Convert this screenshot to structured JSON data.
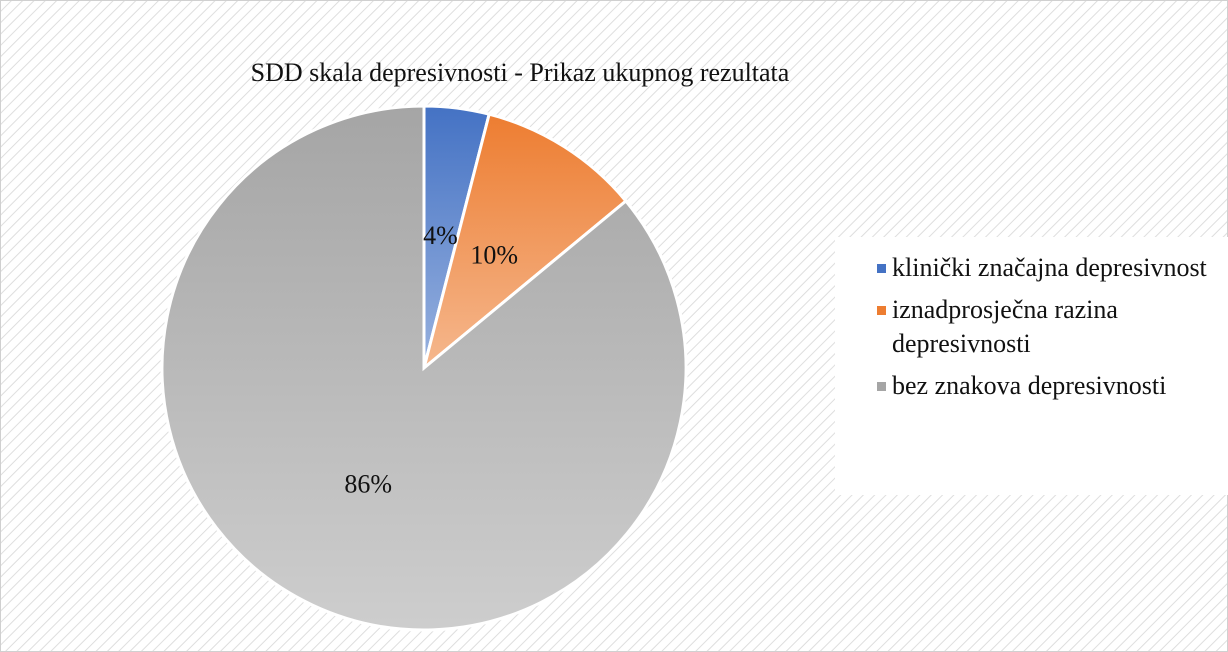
{
  "chart_data": {
    "type": "pie",
    "title": "SDD skala depresivnosti - Prikaz ukupnog rezultata",
    "categories": [
      "klinički značajna depresivnost",
      "iznadprosječna razina depresivnosti",
      "bez znakova depresivnosti"
    ],
    "values": [
      4,
      10,
      86
    ],
    "value_labels": [
      "4%",
      "10%",
      "86%"
    ],
    "colors": [
      "#4472c4",
      "#ed7d31",
      "#a5a5a5"
    ],
    "legend": "right"
  }
}
